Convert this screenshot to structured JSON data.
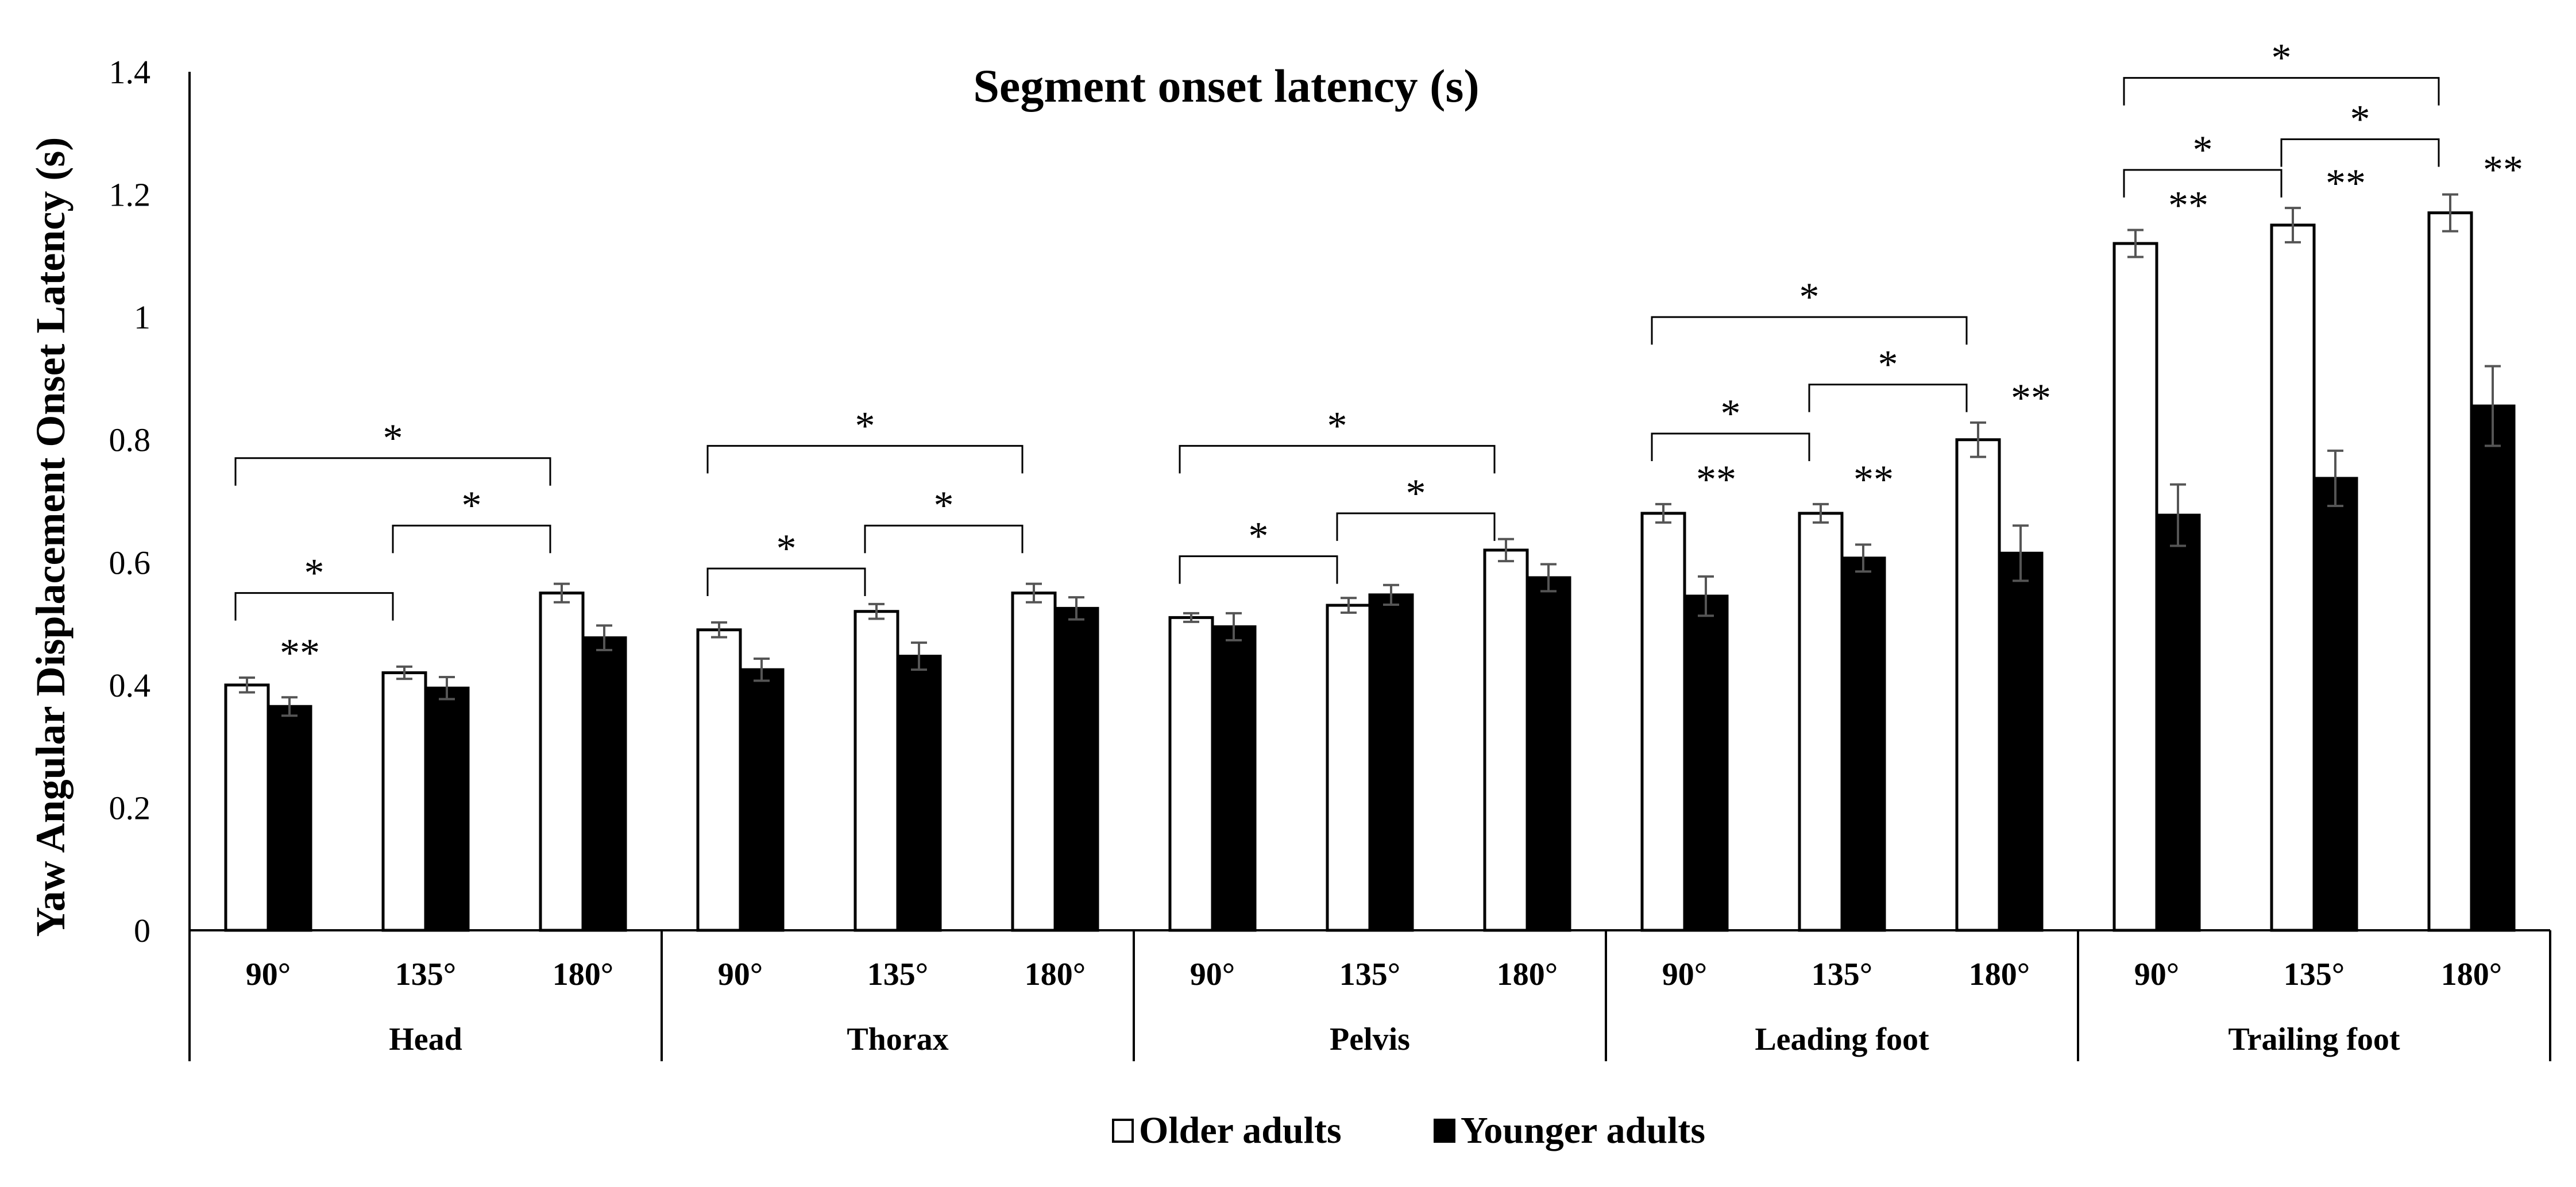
{
  "chart_data": {
    "type": "bar",
    "title": "Segment onset latency (s)",
    "ylabel": "Yaw Angular Displacement Onset Latency (s)",
    "xlabel": "",
    "ylim": [
      0,
      1.4
    ],
    "yticks": [
      "0",
      "0.2",
      "0.4",
      "0.6",
      "0.8",
      "1",
      "1.2",
      "1.4"
    ],
    "grid": false,
    "legend_position": "bottom-center",
    "groups": [
      "Head",
      "Thorax",
      "Pelvis",
      "Leading foot",
      "Trailing foot"
    ],
    "conditions": [
      "90°",
      "135°",
      "180°"
    ],
    "series": [
      {
        "name": "Older adults",
        "fill": "#ffffff",
        "values": [
          [
            0.4,
            0.42,
            0.55
          ],
          [
            0.49,
            0.52,
            0.55
          ],
          [
            0.51,
            0.53,
            0.62
          ],
          [
            0.68,
            0.68,
            0.8
          ],
          [
            1.12,
            1.15,
            1.17
          ]
        ],
        "errors": [
          [
            0.012,
            0.01,
            0.015
          ],
          [
            0.012,
            0.012,
            0.015
          ],
          [
            0.007,
            0.012,
            0.018
          ],
          [
            0.015,
            0.015,
            0.028
          ],
          [
            0.022,
            0.028,
            0.03
          ]
        ]
      },
      {
        "name": "Younger adults",
        "fill": "#000000",
        "values": [
          [
            0.365,
            0.395,
            0.477
          ],
          [
            0.425,
            0.447,
            0.525
          ],
          [
            0.495,
            0.547,
            0.575
          ],
          [
            0.545,
            0.607,
            0.615
          ],
          [
            0.677,
            0.737,
            0.855
          ]
        ],
        "errors": [
          [
            0.015,
            0.018,
            0.02
          ],
          [
            0.018,
            0.022,
            0.018
          ],
          [
            0.022,
            0.016,
            0.022
          ],
          [
            0.032,
            0.022,
            0.045
          ],
          [
            0.05,
            0.045,
            0.065
          ]
        ]
      }
    ],
    "annotations": {
      "double_star": [
        {
          "group": 0,
          "condition": 0
        },
        {
          "group": 3,
          "condition": 0
        },
        {
          "group": 3,
          "condition": 1
        },
        {
          "group": 3,
          "condition": 2
        },
        {
          "group": 4,
          "condition": 0
        },
        {
          "group": 4,
          "condition": 1
        },
        {
          "group": 4,
          "condition": 2
        }
      ],
      "double_star_label": "**",
      "brackets": [
        {
          "group": 0,
          "from": 0,
          "to": 1,
          "level": 0.55,
          "label": "*"
        },
        {
          "group": 0,
          "from": 1,
          "to": 2,
          "level": 0.66,
          "label": "*"
        },
        {
          "group": 0,
          "from": 0,
          "to": 2,
          "level": 0.77,
          "label": "*"
        },
        {
          "group": 1,
          "from": 0,
          "to": 1,
          "level": 0.59,
          "label": "*"
        },
        {
          "group": 1,
          "from": 1,
          "to": 2,
          "level": 0.66,
          "label": "*"
        },
        {
          "group": 1,
          "from": 0,
          "to": 2,
          "level": 0.79,
          "label": "*"
        },
        {
          "group": 2,
          "from": 0,
          "to": 1,
          "level": 0.61,
          "label": "*"
        },
        {
          "group": 2,
          "from": 1,
          "to": 2,
          "level": 0.68,
          "label": "*"
        },
        {
          "group": 2,
          "from": 0,
          "to": 2,
          "level": 0.79,
          "label": "*"
        },
        {
          "group": 3,
          "from": 0,
          "to": 1,
          "level": 0.81,
          "label": "*"
        },
        {
          "group": 3,
          "from": 1,
          "to": 2,
          "level": 0.89,
          "label": "*"
        },
        {
          "group": 3,
          "from": 0,
          "to": 2,
          "level": 1.0,
          "label": "*"
        },
        {
          "group": 4,
          "from": 0,
          "to": 1,
          "level": 1.24,
          "label": "*"
        },
        {
          "group": 4,
          "from": 1,
          "to": 2,
          "level": 1.29,
          "label": "*"
        },
        {
          "group": 4,
          "from": 0,
          "to": 2,
          "level": 1.39,
          "label": "*"
        }
      ]
    }
  }
}
